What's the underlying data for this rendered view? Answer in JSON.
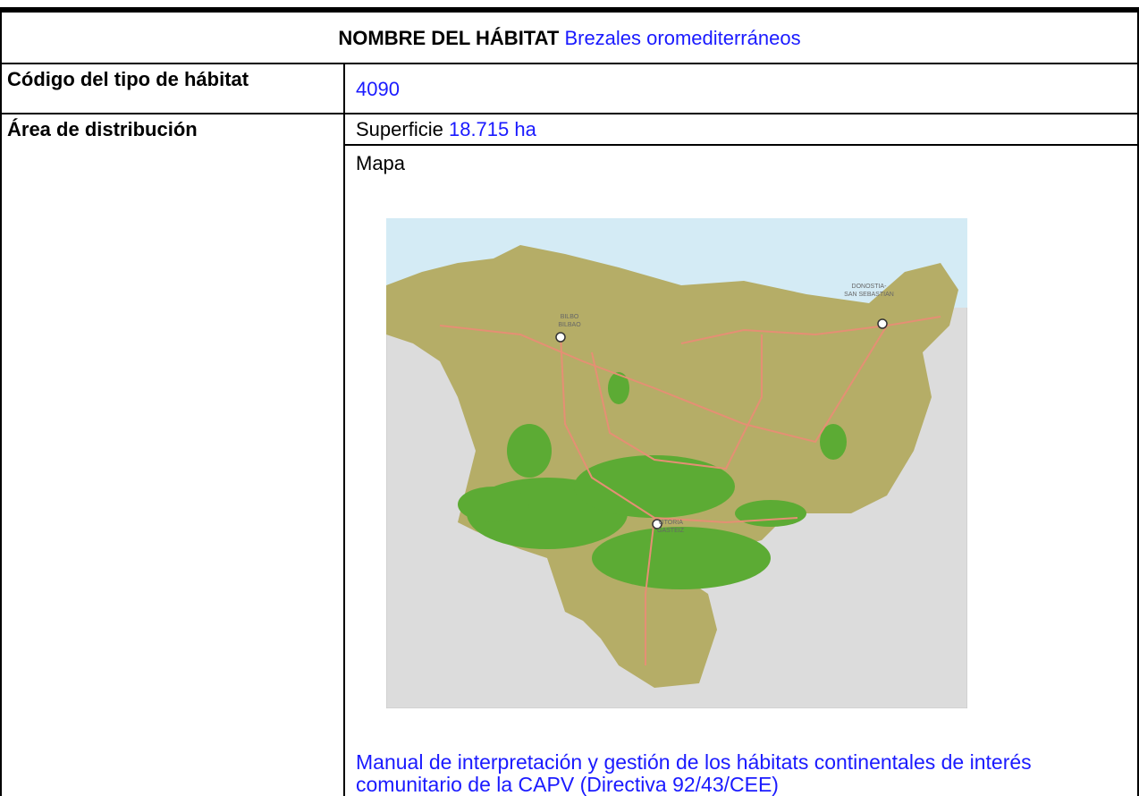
{
  "header": {
    "label": "NOMBRE DEL HÁBITAT",
    "value": "Brezales oromediterráneos"
  },
  "code": {
    "label": "Código del tipo de hábitat",
    "value": "4090"
  },
  "distribution": {
    "label": "Área de distribución",
    "surface_label": "Superficie",
    "surface_value": "18.715 ha",
    "map_label": "Mapa",
    "map_cities": [
      "DONOSTIA-",
      "SAN SEBASTIAN",
      "BILBO",
      "BILBAO",
      "VITORIA",
      "GASTEIZ"
    ],
    "caption": "Manual de interpretación y gestión de los hábitats continentales de interés comunitario de la CAPV (Directiva 92/43/CEE)"
  }
}
